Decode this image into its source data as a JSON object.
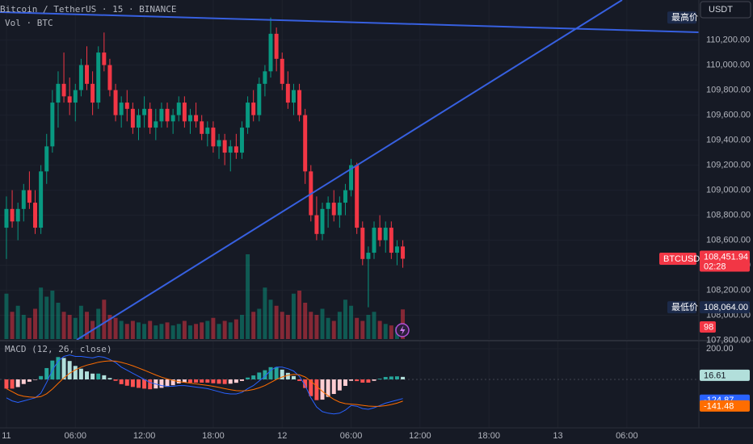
{
  "chart_data": {
    "type": "candlestick",
    "title": "Bitcoin / TetherUS · 15 · BINANCE",
    "volume_label": "Vol · BTC",
    "indicator_label": "MACD (12, 26, close)",
    "currency": "USDT",
    "symbol": "BTCUSDT",
    "countdown": "02:28",
    "last_price": {
      "value": 108451.94,
      "label": "108,451.94"
    },
    "high": {
      "label": "最高价",
      "value": 110380
    },
    "low": {
      "label": "最低价",
      "value": 108064,
      "value_label": "108,064.00"
    },
    "up_color": "#089981",
    "down_color": "#f23645",
    "grid": true,
    "xlim": [
      -0.56,
      60.27
    ],
    "xticks": [
      {
        "value": 0,
        "label": "11"
      },
      {
        "value": 6,
        "label": "06:00"
      },
      {
        "value": 12,
        "label": "12:00"
      },
      {
        "value": 18,
        "label": "18:00"
      },
      {
        "value": 24,
        "label": "12"
      },
      {
        "value": 30,
        "label": "06:00"
      },
      {
        "value": 36,
        "label": "12:00"
      },
      {
        "value": 42,
        "label": "18:00"
      },
      {
        "value": 48,
        "label": "13"
      },
      {
        "value": 54,
        "label": "06:00"
      }
    ],
    "ylim": [
      107810,
      110520
    ],
    "yticks": [
      {
        "value": 107800,
        "label": "107,800.00"
      },
      {
        "value": 108000,
        "label": "108,000.00"
      },
      {
        "value": 108200,
        "label": "108,200.00"
      },
      {
        "value": 108400,
        "label": "108,400.00"
      },
      {
        "value": 108600,
        "label": "108,600.00"
      },
      {
        "value": 108800,
        "label": "108,800.00"
      },
      {
        "value": 109000,
        "label": "109,000.00"
      },
      {
        "value": 109200,
        "label": "109,200.00"
      },
      {
        "value": 109400,
        "label": "109,400.00"
      },
      {
        "value": 109600,
        "label": "109,600.00"
      },
      {
        "value": 109800,
        "label": "109,800.00"
      },
      {
        "value": 110000,
        "label": "110,000.00"
      },
      {
        "value": 110200,
        "label": "110,200.00"
      }
    ],
    "vlim": [
      0,
      480
    ],
    "mlim": [
      -316,
      237
    ],
    "mticks": [
      {
        "value": 200,
        "label": "200.00"
      }
    ],
    "x": [
      0,
      0.5,
      1,
      1.5,
      2,
      2.5,
      3,
      3.5,
      4,
      4.5,
      5,
      5.5,
      6,
      6.5,
      7,
      7.5,
      8,
      8.5,
      9,
      9.5,
      10,
      10.5,
      11,
      11.5,
      12,
      12.5,
      13,
      13.5,
      14,
      14.5,
      15,
      15.5,
      16,
      16.5,
      17,
      17.5,
      18,
      18.5,
      19,
      19.5,
      20,
      20.5,
      21,
      21.5,
      22,
      22.5,
      23,
      23.5,
      24,
      24.5,
      25,
      25.5,
      26,
      26.5,
      27,
      27.5,
      28,
      28.5,
      29,
      29.5,
      30,
      30.5,
      31,
      31.5,
      32,
      32.5,
      33,
      33.5,
      34,
      34.5
    ],
    "ohlc": [
      [
        108700,
        108950,
        108450,
        108850
      ],
      [
        108850,
        109000,
        108700,
        108750
      ],
      [
        108750,
        108900,
        108600,
        108850
      ],
      [
        108850,
        109050,
        108750,
        109000
      ],
      [
        109000,
        109150,
        108850,
        108900
      ],
      [
        108900,
        109000,
        108650,
        108700
      ],
      [
        108700,
        109200,
        108650,
        109150
      ],
      [
        109150,
        109450,
        109050,
        109350
      ],
      [
        109350,
        109800,
        109300,
        109700
      ],
      [
        109700,
        109950,
        109500,
        109850
      ],
      [
        109850,
        110100,
        109700,
        109750
      ],
      [
        109750,
        109900,
        109600,
        109700
      ],
      [
        109700,
        109850,
        109550,
        109800
      ],
      [
        109800,
        110050,
        109750,
        110000
      ],
      [
        110000,
        110150,
        109800,
        109850
      ],
      [
        109850,
        109950,
        109600,
        109700
      ],
      [
        109700,
        110150,
        109650,
        110100
      ],
      [
        110100,
        110260,
        109950,
        110000
      ],
      [
        110000,
        110050,
        109750,
        109800
      ],
      [
        109800,
        109850,
        109550,
        109600
      ],
      [
        109600,
        109750,
        109500,
        109700
      ],
      [
        109700,
        109800,
        109550,
        109650
      ],
      [
        109650,
        109700,
        109450,
        109500
      ],
      [
        109500,
        109650,
        109400,
        109600
      ],
      [
        109600,
        109750,
        109500,
        109650
      ],
      [
        109650,
        109700,
        109450,
        109500
      ],
      [
        109500,
        109650,
        109400,
        109550
      ],
      [
        109550,
        109700,
        109500,
        109650
      ],
      [
        109650,
        109700,
        109500,
        109550
      ],
      [
        109550,
        109650,
        109450,
        109600
      ],
      [
        109600,
        109750,
        109550,
        109700
      ],
      [
        109700,
        109750,
        109500,
        109550
      ],
      [
        109550,
        109650,
        109450,
        109600
      ],
      [
        109600,
        109700,
        109500,
        109550
      ],
      [
        109550,
        109600,
        109400,
        109450
      ],
      [
        109450,
        109550,
        109350,
        109500
      ],
      [
        109500,
        109550,
        109300,
        109350
      ],
      [
        109350,
        109450,
        109250,
        109400
      ],
      [
        109400,
        109450,
        109200,
        109300
      ],
      [
        109300,
        109400,
        109150,
        109350
      ],
      [
        109350,
        109450,
        109250,
        109300
      ],
      [
        109300,
        109550,
        109250,
        109500
      ],
      [
        109500,
        109750,
        109450,
        109700
      ],
      [
        109700,
        109800,
        109550,
        109600
      ],
      [
        109600,
        109900,
        109550,
        109850
      ],
      [
        109850,
        110000,
        109750,
        109950
      ],
      [
        109950,
        110380,
        109900,
        110250
      ],
      [
        110250,
        110300,
        109950,
        110050
      ],
      [
        110050,
        110100,
        109800,
        109850
      ],
      [
        109850,
        109950,
        109650,
        109700
      ],
      [
        109700,
        109850,
        109600,
        109800
      ],
      [
        109800,
        109850,
        109550,
        109600
      ],
      [
        109600,
        109650,
        109050,
        109150
      ],
      [
        109150,
        109200,
        108750,
        108800
      ],
      [
        108800,
        108950,
        108600,
        108650
      ],
      [
        108650,
        108900,
        108600,
        108850
      ],
      [
        108850,
        108950,
        108700,
        108900
      ],
      [
        108900,
        109000,
        108750,
        108800
      ],
      [
        108800,
        108950,
        108700,
        108900
      ],
      [
        108900,
        109050,
        108800,
        109000
      ],
      [
        109000,
        109250,
        108950,
        109200
      ],
      [
        109200,
        109220,
        108650,
        108700
      ],
      [
        108700,
        108750,
        108400,
        108450
      ],
      [
        108450,
        108550,
        108064,
        108500
      ],
      [
        108500,
        108750,
        108450,
        108700
      ],
      [
        108700,
        108800,
        108550,
        108600
      ],
      [
        108600,
        108750,
        108500,
        108700
      ],
      [
        108700,
        108750,
        108450,
        108500
      ],
      [
        108500,
        108600,
        108400,
        108550
      ],
      [
        108550,
        108600,
        108380,
        108451.94
      ]
    ],
    "volume": [
      150,
      90,
      110,
      80,
      70,
      100,
      170,
      140,
      160,
      120,
      90,
      80,
      70,
      110,
      90,
      60,
      100,
      130,
      80,
      70,
      60,
      50,
      60,
      55,
      50,
      60,
      45,
      50,
      55,
      45,
      50,
      60,
      45,
      50,
      55,
      60,
      70,
      50,
      60,
      55,
      65,
      80,
      280,
      90,
      100,
      170,
      130,
      110,
      90,
      80,
      150,
      160,
      120,
      90,
      80,
      100,
      70,
      60,
      90,
      130,
      110,
      70,
      60,
      80,
      90,
      60,
      50,
      45,
      40,
      98
    ],
    "macd": [
      -120,
      -140,
      -150,
      -140,
      -130,
      -120,
      -90,
      -20,
      60,
      120,
      150,
      160,
      150,
      150,
      145,
      140,
      150,
      145,
      130,
      110,
      80,
      60,
      40,
      20,
      0,
      -20,
      -30,
      -40,
      -45,
      -45,
      -40,
      -40,
      -45,
      -50,
      -55,
      -60,
      -70,
      -80,
      -90,
      -95,
      -95,
      -85,
      -60,
      -40,
      -10,
      20,
      60,
      80,
      80,
      70,
      55,
      20,
      -40,
      -120,
      -180,
      -210,
      -220,
      -225,
      -220,
      -200,
      -170,
      -175,
      -190,
      -195,
      -185,
      -170,
      -155,
      -145,
      -135,
      -124.87
    ],
    "signal": [
      -60,
      -80,
      -100,
      -110,
      -115,
      -117,
      -112,
      -94,
      -63,
      -26,
      10,
      40,
      62,
      80,
      93,
      102,
      112,
      118,
      121,
      119,
      111,
      101,
      89,
      75,
      60,
      44,
      29,
      15,
      3,
      -7,
      -14,
      -19,
      -24,
      -29,
      -34,
      -39,
      -45,
      -52,
      -60,
      -67,
      -73,
      -75,
      -72,
      -66,
      -55,
      -40,
      -20,
      0,
      16,
      27,
      33,
      30,
      16,
      -11,
      -45,
      -78,
      -106,
      -130,
      -148,
      -158,
      -161,
      -164,
      -169,
      -174,
      -176,
      -175,
      -171,
      -164,
      -155,
      -141.48
    ],
    "hist": [
      -60,
      -60,
      -50,
      -30,
      -15,
      -3,
      22,
      74,
      123,
      146,
      140,
      120,
      88,
      70,
      52,
      38,
      38,
      27,
      9,
      -9,
      -31,
      -41,
      -49,
      -55,
      -60,
      -64,
      -59,
      -55,
      -48,
      -38,
      -26,
      -21,
      -21,
      -21,
      -21,
      -21,
      -25,
      -28,
      -30,
      -28,
      -22,
      -10,
      12,
      26,
      45,
      60,
      80,
      80,
      64,
      43,
      22,
      -10,
      -56,
      -109,
      -135,
      -132,
      -114,
      -95,
      -72,
      -42,
      -9,
      -11,
      -21,
      -21,
      -9,
      5,
      16,
      19,
      20,
      16.61
    ],
    "macd_color": "#2962ff",
    "signal_color": "#ff6d00"
  }
}
